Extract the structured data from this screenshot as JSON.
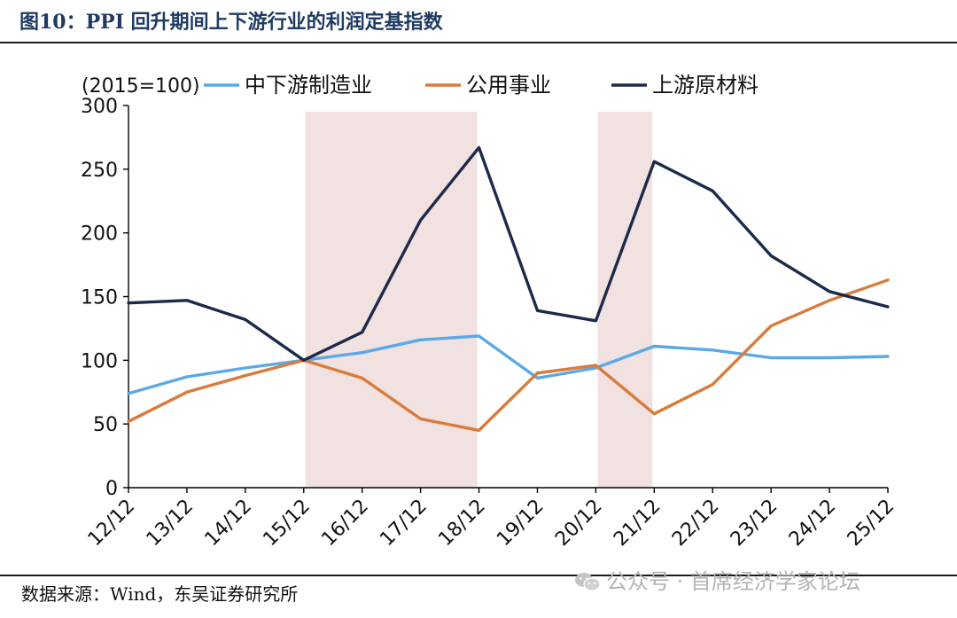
{
  "header": {
    "title": "图10：PPI 回升期间上下游行业的利润定基指数"
  },
  "footer": {
    "source": "数据来源：Wind，东吴证券研究所"
  },
  "watermark": {
    "text": "公众号 · 首席经济学家论坛",
    "icon": "wechat-icon"
  },
  "chart_data": {
    "type": "line",
    "unit_label": "(2015=100)",
    "categories": [
      "12/12",
      "13/12",
      "14/12",
      "15/12",
      "16/12",
      "17/12",
      "18/12",
      "19/12",
      "20/12",
      "21/12",
      "22/12",
      "23/12",
      "24/12",
      "25/12"
    ],
    "yticks": [
      "0",
      "50",
      "100",
      "150",
      "200",
      "250",
      "300"
    ],
    "ylim": [
      0,
      300
    ],
    "legend_position": "top",
    "series": [
      {
        "name": "中下游制造业",
        "color": "#5aa9e6",
        "values": [
          74,
          87,
          94,
          100,
          106,
          116,
          119,
          86,
          94,
          111,
          108,
          102,
          102,
          103
        ]
      },
      {
        "name": "公用事业",
        "color": "#d97b3a",
        "values": [
          52,
          75,
          88,
          100,
          86,
          54,
          45,
          90,
          96,
          58,
          81,
          127,
          147,
          163
        ]
      },
      {
        "name": "上游原材料",
        "color": "#1c2a4a",
        "values": [
          145,
          147,
          132,
          100,
          122,
          210,
          267,
          139,
          131,
          256,
          233,
          182,
          154,
          142
        ]
      }
    ],
    "shaded_periods": [
      {
        "from": "15/12",
        "to": "18/12",
        "color": "#f2e1e1"
      },
      {
        "from": "20/12",
        "to": "21/12",
        "color": "#f2e1e1"
      }
    ]
  }
}
